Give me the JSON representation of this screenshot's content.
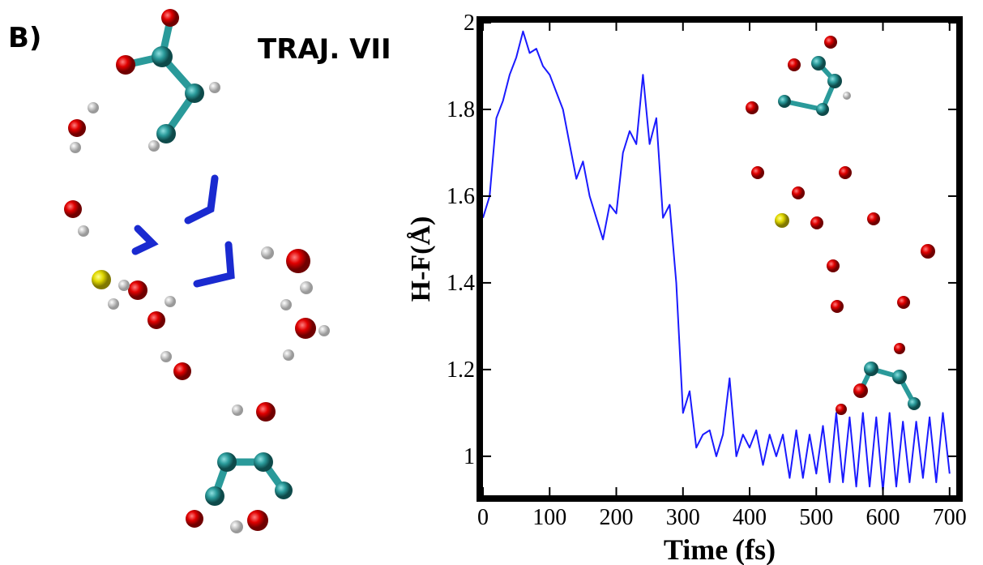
{
  "panel_label": "B)",
  "chart_data": {
    "type": "line",
    "title": "TRAJ. VII",
    "x_label": "Time (fs)",
    "y_label": "H-F(Å)",
    "color": "#1a1aff",
    "x": [
      0,
      10,
      20,
      30,
      40,
      50,
      60,
      70,
      80,
      90,
      100,
      110,
      120,
      130,
      140,
      150,
      160,
      170,
      180,
      190,
      200,
      210,
      220,
      230,
      240,
      250,
      260,
      270,
      280,
      290,
      300,
      310,
      320,
      330,
      340,
      350,
      360,
      370,
      380,
      390,
      400,
      410,
      420,
      430,
      440,
      450,
      460,
      470,
      480,
      490,
      500,
      510,
      520,
      530,
      540,
      550,
      560,
      570,
      580,
      590,
      600,
      610,
      620,
      630,
      640,
      650,
      660,
      670,
      680,
      690,
      700
    ],
    "values": [
      1.55,
      1.6,
      1.78,
      1.82,
      1.88,
      1.92,
      1.98,
      1.93,
      1.94,
      1.9,
      1.88,
      1.84,
      1.8,
      1.72,
      1.64,
      1.68,
      1.6,
      1.55,
      1.5,
      1.58,
      1.56,
      1.7,
      1.75,
      1.72,
      1.88,
      1.72,
      1.78,
      1.55,
      1.58,
      1.4,
      1.1,
      1.15,
      1.02,
      1.05,
      1.06,
      1.0,
      1.05,
      1.18,
      1.0,
      1.05,
      1.02,
      1.06,
      0.98,
      1.05,
      1.0,
      1.05,
      0.95,
      1.06,
      0.95,
      1.05,
      0.96,
      1.07,
      0.94,
      1.1,
      0.94,
      1.09,
      0.93,
      1.1,
      0.93,
      1.09,
      0.92,
      1.1,
      0.93,
      1.08,
      0.94,
      1.08,
      0.95,
      1.09,
      0.94,
      1.1,
      0.96
    ],
    "xlim": [
      0,
      710
    ],
    "ylim": [
      0.91,
      2.0
    ],
    "xticks": [
      0,
      100,
      200,
      300,
      400,
      500,
      600,
      700
    ],
    "yticks": [
      1,
      1.2,
      1.4,
      1.6,
      1.8,
      2
    ]
  }
}
